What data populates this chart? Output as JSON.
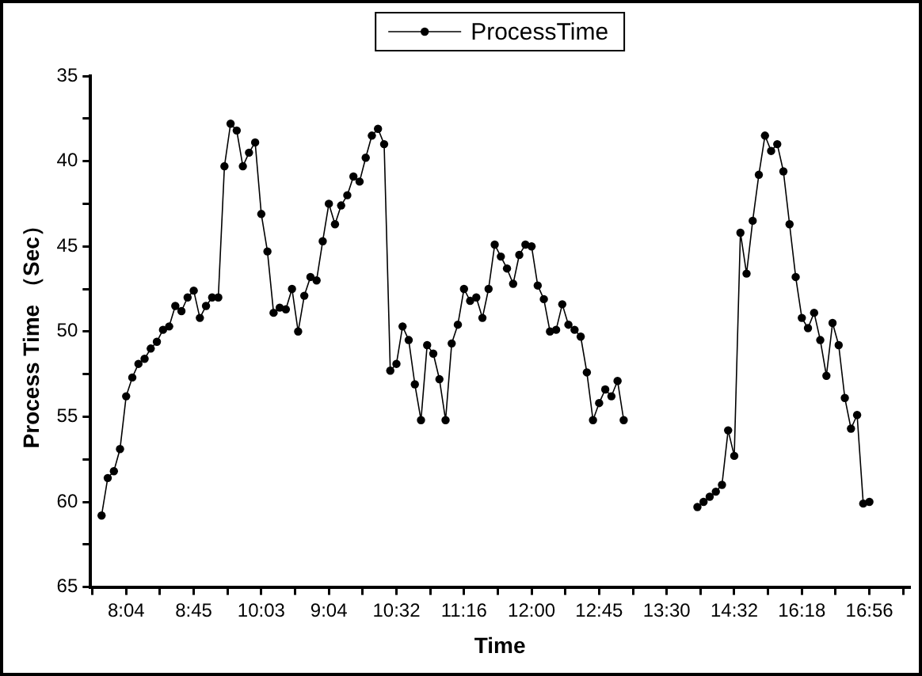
{
  "chart_data": {
    "type": "line",
    "xlabel": "Time",
    "ylabel": "Process Time （Sec）",
    "categories": [
      null,
      null,
      null,
      null,
      "8:04",
      null,
      null,
      null,
      null,
      null,
      null,
      null,
      null,
      null,
      null,
      "8:45",
      null,
      null,
      null,
      null,
      null,
      null,
      null,
      null,
      null,
      null,
      "10:03",
      null,
      null,
      null,
      null,
      null,
      null,
      null,
      null,
      null,
      null,
      "9:04",
      null,
      null,
      null,
      null,
      null,
      null,
      null,
      null,
      null,
      null,
      "10:32",
      null,
      null,
      null,
      null,
      null,
      null,
      null,
      null,
      null,
      null,
      "11:16",
      null,
      null,
      null,
      null,
      null,
      null,
      null,
      null,
      null,
      null,
      "12:00",
      null,
      null,
      null,
      null,
      null,
      null,
      null,
      null,
      null,
      null,
      "12:45",
      null,
      null,
      null,
      null,
      null,
      null,
      null,
      null,
      null,
      null,
      "13:30",
      null,
      null,
      null,
      null,
      null,
      null,
      null,
      null,
      null,
      null,
      "14:32",
      null,
      null,
      null,
      null,
      null,
      null,
      null,
      null,
      null,
      null,
      "16:18",
      null,
      null,
      null,
      null,
      null,
      null,
      null,
      null,
      null,
      null,
      "16:56"
    ],
    "series": [
      {
        "name": "ProcessTime",
        "color": "#000000",
        "values": [
          60.8,
          58.6,
          58.2,
          56.9,
          53.8,
          52.7,
          51.9,
          51.6,
          51.0,
          50.6,
          49.9,
          49.7,
          48.5,
          48.8,
          48.0,
          47.6,
          49.2,
          48.5,
          48.0,
          48.0,
          40.3,
          37.8,
          38.2,
          40.3,
          39.5,
          38.9,
          43.1,
          45.3,
          48.9,
          48.6,
          48.7,
          47.5,
          50.0,
          47.9,
          46.8,
          47.0,
          44.7,
          42.5,
          43.7,
          42.6,
          42.0,
          40.9,
          41.2,
          39.8,
          38.5,
          38.1,
          39.0,
          52.3,
          51.9,
          49.7,
          50.5,
          53.1,
          55.2,
          50.8,
          51.3,
          52.8,
          55.2,
          50.7,
          49.6,
          47.5,
          48.2,
          48.0,
          49.2,
          47.5,
          44.9,
          45.6,
          46.3,
          47.2,
          45.5,
          44.9,
          45.0,
          47.3,
          48.1,
          50.0,
          49.9,
          48.4,
          49.6,
          49.9,
          50.3,
          52.4,
          55.2,
          54.2,
          53.4,
          53.8,
          52.9,
          55.2,
          null,
          null,
          null,
          null,
          null,
          null,
          null,
          null,
          null,
          null,
          null,
          60.3,
          60.0,
          59.7,
          59.4,
          59.0,
          55.8,
          57.3,
          44.2,
          46.6,
          43.5,
          40.8,
          38.5,
          39.4,
          39.0,
          40.6,
          43.7,
          46.8,
          49.2,
          49.8,
          48.9,
          50.5,
          52.6,
          49.5,
          50.8,
          53.9,
          55.7,
          54.9,
          60.1,
          60.0
        ]
      }
    ],
    "ylim": [
      65,
      35
    ],
    "yticks": [
      35,
      40,
      45,
      50,
      55,
      60,
      65
    ],
    "legend": "top",
    "marker": "circle",
    "line_style": "solid",
    "grid": false
  }
}
